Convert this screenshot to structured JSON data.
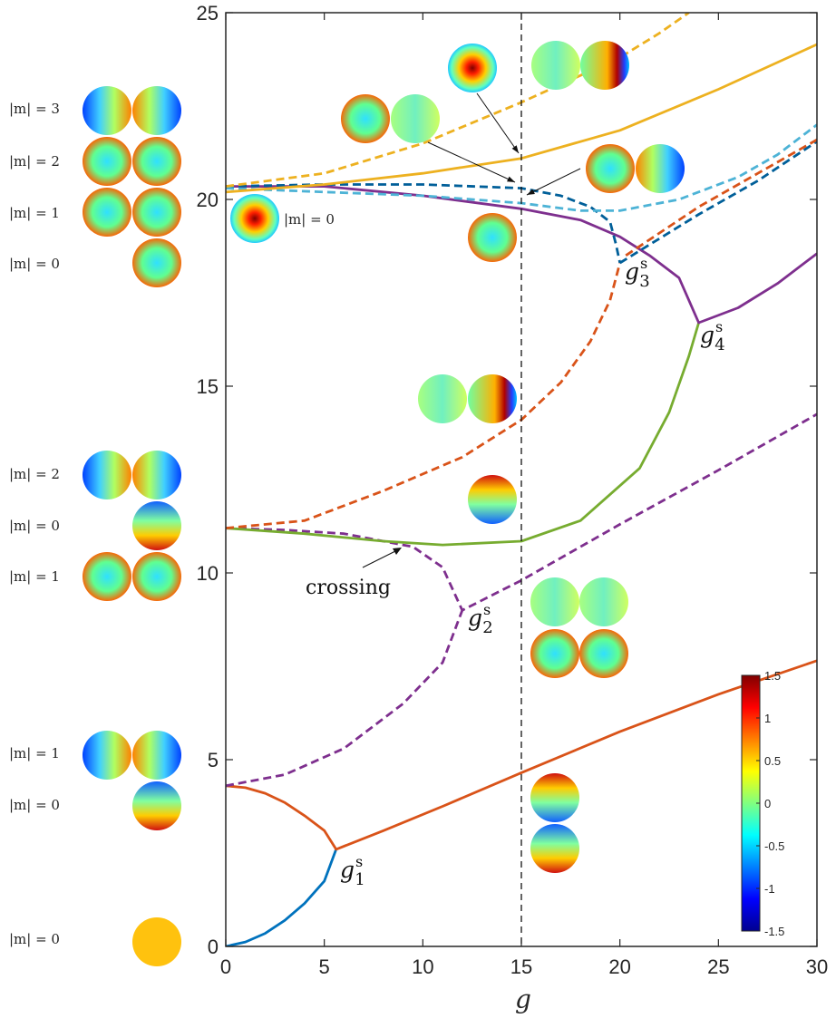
{
  "chart_data": {
    "type": "line",
    "title": "",
    "xlabel": "g",
    "ylabel": "",
    "xlim": [
      0,
      30
    ],
    "ylim": [
      0,
      25
    ],
    "xticks": [
      "0",
      "5",
      "10",
      "15",
      "20",
      "25",
      "30"
    ],
    "yticks": [
      "0",
      "5",
      "10",
      "15",
      "20",
      "25"
    ],
    "grid": false,
    "vertical_line": {
      "x": 15,
      "style": "dashed"
    },
    "series": [
      {
        "color": "#0072bd",
        "dashed": false,
        "points": [
          [
            0,
            0
          ],
          [
            1,
            0.12
          ],
          [
            2,
            0.35
          ],
          [
            3,
            0.7
          ],
          [
            4,
            1.15
          ],
          [
            5,
            1.75
          ],
          [
            5.6,
            2.6
          ]
        ]
      },
      {
        "color": "#d95319",
        "dashed": false,
        "points": [
          [
            0,
            4.3
          ],
          [
            1,
            4.25
          ],
          [
            2,
            4.1
          ],
          [
            3,
            3.85
          ],
          [
            4,
            3.5
          ],
          [
            5,
            3.1
          ],
          [
            5.6,
            2.6
          ],
          [
            8,
            3.1
          ],
          [
            11,
            3.75
          ],
          [
            15,
            4.65
          ],
          [
            20,
            5.75
          ],
          [
            25,
            6.75
          ],
          [
            30,
            7.65
          ]
        ]
      },
      {
        "color": "#7e2f8e",
        "dashed": true,
        "points": [
          [
            0,
            4.3
          ],
          [
            3,
            4.6
          ],
          [
            6,
            5.3
          ],
          [
            9,
            6.5
          ],
          [
            11,
            7.6
          ],
          [
            12,
            9.0
          ]
        ]
      },
      {
        "color": "#7e2f8e",
        "dashed": true,
        "points": [
          [
            0,
            11.2
          ],
          [
            3,
            11.15
          ],
          [
            6,
            11.05
          ],
          [
            8,
            10.85
          ],
          [
            9.5,
            10.7
          ],
          [
            11,
            10.15
          ],
          [
            12,
            9.0
          ],
          [
            15,
            9.8
          ],
          [
            20,
            11.3
          ],
          [
            25,
            12.75
          ],
          [
            30,
            14.25
          ]
        ]
      },
      {
        "color": "#77ac30",
        "dashed": false,
        "points": [
          [
            0,
            11.2
          ],
          [
            4,
            11.05
          ],
          [
            8,
            10.85
          ],
          [
            11,
            10.75
          ],
          [
            15,
            10.85
          ],
          [
            18,
            11.4
          ],
          [
            21,
            12.8
          ],
          [
            22.5,
            14.3
          ],
          [
            23.5,
            15.8
          ],
          [
            24,
            16.7
          ]
        ]
      },
      {
        "color": "#d95319",
        "dashed": true,
        "points": [
          [
            0,
            11.2
          ],
          [
            4,
            11.4
          ],
          [
            8,
            12.2
          ],
          [
            12,
            13.1
          ],
          [
            15,
            14.1
          ],
          [
            17,
            15.1
          ],
          [
            18.5,
            16.2
          ],
          [
            19.5,
            17.3
          ],
          [
            20,
            18.3
          ]
        ]
      },
      {
        "color": "#7e2f8e",
        "dashed": false,
        "points": [
          [
            0,
            20.35
          ],
          [
            5,
            20.35
          ],
          [
            10,
            20.1
          ],
          [
            15,
            19.75
          ],
          [
            18,
            19.45
          ],
          [
            20,
            19.0
          ],
          [
            21.5,
            18.5
          ],
          [
            23,
            17.9
          ],
          [
            24,
            16.7
          ],
          [
            26,
            17.1
          ],
          [
            28,
            17.75
          ],
          [
            30,
            18.55
          ]
        ]
      },
      {
        "color": "#005f99",
        "dashed": true,
        "points": [
          [
            0,
            20.35
          ],
          [
            5,
            20.4
          ],
          [
            10,
            20.4
          ],
          [
            15,
            20.3
          ],
          [
            17,
            20.1
          ],
          [
            18.5,
            19.8
          ],
          [
            19.5,
            19.4
          ],
          [
            19.8,
            18.8
          ],
          [
            20,
            18.3
          ]
        ]
      },
      {
        "color": "#005f99",
        "dashed": true,
        "points": [
          [
            20,
            18.3
          ],
          [
            24,
            19.6
          ],
          [
            27,
            20.5
          ],
          [
            30,
            21.55
          ]
        ]
      },
      {
        "color": "#d95319",
        "dashed": true,
        "points": [
          [
            20.3,
            18.5
          ],
          [
            24,
            19.8
          ],
          [
            27,
            20.7
          ],
          [
            30,
            21.6
          ]
        ]
      },
      {
        "color": "#4db3d6",
        "dashed": true,
        "points": [
          [
            0,
            20.3
          ],
          [
            5,
            20.2
          ],
          [
            10,
            20.1
          ],
          [
            15,
            19.9
          ],
          [
            18,
            19.7
          ],
          [
            20,
            19.7
          ],
          [
            23,
            20.0
          ],
          [
            26,
            20.6
          ],
          [
            28,
            21.2
          ],
          [
            30,
            22.0
          ]
        ]
      },
      {
        "color": "#edb120",
        "dashed": false,
        "points": [
          [
            0,
            20.2
          ],
          [
            5,
            20.4
          ],
          [
            10,
            20.7
          ],
          [
            15,
            21.1
          ],
          [
            20,
            21.85
          ],
          [
            25,
            22.95
          ],
          [
            30,
            24.15
          ]
        ]
      },
      {
        "color": "#edb120",
        "dashed": true,
        "points": [
          [
            0,
            20.35
          ],
          [
            5,
            20.7
          ],
          [
            10,
            21.5
          ],
          [
            15,
            22.6
          ],
          [
            20,
            23.8
          ],
          [
            22,
            24.45
          ],
          [
            23.5,
            25
          ]
        ]
      }
    ],
    "annotations": {
      "crossing": "crossing",
      "g1": "g",
      "g2": "g",
      "g3": "g",
      "g4": "g",
      "sup": "s",
      "sub1": "1",
      "sub2": "2",
      "sub3": "3",
      "sub4": "4"
    },
    "colorbar": {
      "min": -1.5,
      "max": 1.5,
      "ticks": [
        "1.5",
        "1",
        "0.5",
        "0",
        "-0.5",
        "-1",
        "-1.5"
      ],
      "colormap": "jet"
    },
    "side_labels": [
      "|m| = 3",
      "|m| = 2",
      "|m| = 1",
      "|m| = 0",
      "|m| = 2",
      "|m| = 0",
      "|m| = 1",
      "|m| = 1",
      "|m| = 0",
      "|m| = 0",
      "|m| = 0"
    ]
  }
}
